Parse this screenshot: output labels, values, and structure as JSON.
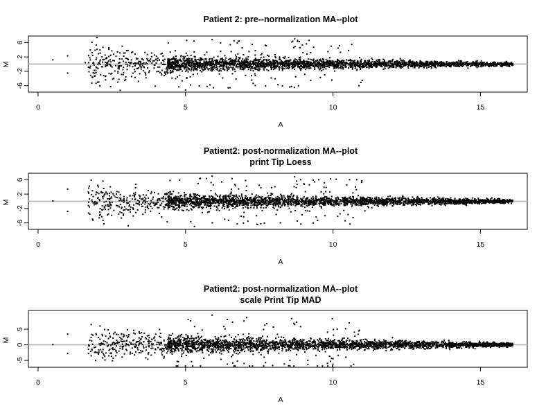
{
  "figure": {
    "background": "#ffffff",
    "point_color": "#000000",
    "reference_line_color": "#bebebe"
  },
  "chart_data": [
    {
      "type": "scatter",
      "title": "Patient 2: pre--normalization MA--plot",
      "subtitle": "",
      "xlabel": "A",
      "ylabel": "M",
      "xlim": [
        0,
        16.4
      ],
      "ylim": [
        -7.8,
        7.8
      ],
      "x_ticks": [
        0,
        5,
        10,
        15
      ],
      "x_tick_labels": [
        "0",
        "5",
        "10",
        "15"
      ],
      "y_ticks": [
        -6,
        -2,
        2,
        6
      ],
      "y_tick_labels": [
        "-6",
        "-2",
        "2",
        "6"
      ],
      "reference_line_y": 0,
      "grid": false,
      "legend": "none",
      "shape": {
        "sparse_x_start": 0.5,
        "dense_x_start": 4.4,
        "x_end": 16.1,
        "extreme_y": 7.2
      },
      "notable_points": [
        {
          "x": 0.5,
          "y": 1.2
        },
        {
          "x": 1.0,
          "y": 2.3
        },
        {
          "x": 1.0,
          "y": -2.5
        },
        {
          "x": 1.6,
          "y": 0.4
        },
        {
          "x": 2.4,
          "y": 4.5
        },
        {
          "x": 2.4,
          "y": 4.1
        },
        {
          "x": 2.7,
          "y": -5.0
        },
        {
          "x": 3.4,
          "y": -4.8
        },
        {
          "x": 5.0,
          "y": -7.2
        },
        {
          "x": 5.9,
          "y": 6.8
        },
        {
          "x": 8.7,
          "y": 7.0
        },
        {
          "x": 8.8,
          "y": 6.3
        },
        {
          "x": 9.1,
          "y": 5.6
        }
      ]
    },
    {
      "type": "scatter",
      "title": "Patient2: post-normalization MA--plot",
      "subtitle": "print Tip Loess",
      "xlabel": "A",
      "ylabel": "M",
      "xlim": [
        0,
        16.4
      ],
      "ylim": [
        -7.8,
        7.8
      ],
      "x_ticks": [
        0,
        5,
        10,
        15
      ],
      "x_tick_labels": [
        "0",
        "5",
        "10",
        "15"
      ],
      "y_ticks": [
        -6,
        -2,
        2,
        6
      ],
      "y_tick_labels": [
        "-6",
        "-2",
        "2",
        "6"
      ],
      "reference_line_y": 0,
      "grid": false,
      "legend": "none",
      "shape": {
        "sparse_x_start": 0.5,
        "dense_x_start": 4.4,
        "x_end": 16.1,
        "extreme_y": 7.0
      },
      "notable_points": [
        {
          "x": 0.5,
          "y": 0.1
        },
        {
          "x": 1.0,
          "y": 3.4
        },
        {
          "x": 1.0,
          "y": -2.8
        },
        {
          "x": 1.8,
          "y": 5.9
        },
        {
          "x": 2.2,
          "y": 5.6
        },
        {
          "x": 5.3,
          "y": -7.0
        },
        {
          "x": 5.9,
          "y": 7.0
        },
        {
          "x": 8.7,
          "y": 6.8
        },
        {
          "x": 8.9,
          "y": 6.0
        }
      ]
    },
    {
      "type": "scatter",
      "title": "Patient2: post-normalization MA--plot",
      "subtitle": "scale Print Tip MAD",
      "xlabel": "A",
      "ylabel": "M",
      "xlim": [
        0,
        16.4
      ],
      "ylim": [
        -7.2,
        11.0
      ],
      "x_ticks": [
        0,
        5,
        10,
        15
      ],
      "x_tick_labels": [
        "0",
        "5",
        "10",
        "15"
      ],
      "y_ticks": [
        -5,
        0,
        5
      ],
      "y_tick_labels": [
        "-5",
        "0",
        "5"
      ],
      "reference_line_y": 0,
      "grid": false,
      "legend": "none",
      "shape": {
        "sparse_x_start": 0.5,
        "dense_x_start": 4.4,
        "x_end": 16.1,
        "extreme_y": 9.5
      },
      "notable_points": [
        {
          "x": 0.5,
          "y": 0.1
        },
        {
          "x": 1.0,
          "y": 3.4
        },
        {
          "x": 1.0,
          "y": -2.8
        },
        {
          "x": 1.8,
          "y": 6.5
        },
        {
          "x": 2.1,
          "y": 6.0
        },
        {
          "x": 5.9,
          "y": 9.5
        },
        {
          "x": 5.2,
          "y": -5.4
        },
        {
          "x": 8.7,
          "y": 6.5
        },
        {
          "x": 8.9,
          "y": 5.8
        }
      ]
    }
  ]
}
